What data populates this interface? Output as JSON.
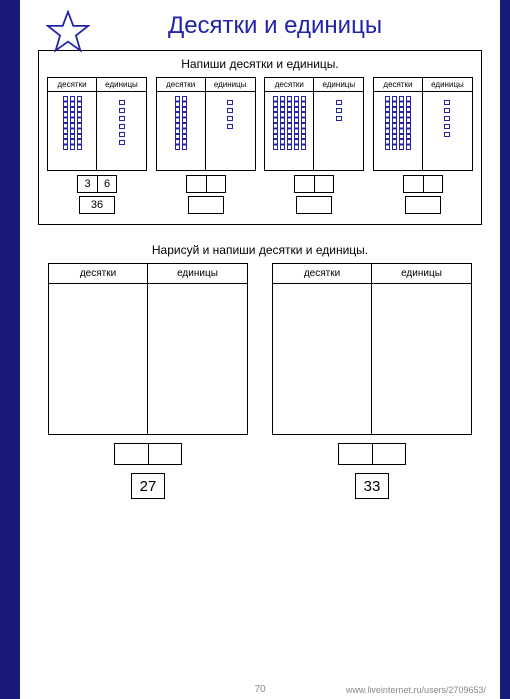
{
  "title": "Десятки и единицы",
  "section1": {
    "instruction": "Напиши десятки и единицы.",
    "col_tens": "десятки",
    "col_units": "единицы",
    "items": [
      {
        "tens_bars": 3,
        "unit_squares": 6,
        "tens_ans": "3",
        "units_ans": "6",
        "total_ans": "36"
      },
      {
        "tens_bars": 2,
        "unit_squares": 4,
        "tens_ans": "",
        "units_ans": "",
        "total_ans": ""
      },
      {
        "tens_bars": 5,
        "unit_squares": 3,
        "tens_ans": "",
        "units_ans": "",
        "total_ans": ""
      },
      {
        "tens_bars": 4,
        "unit_squares": 5,
        "tens_ans": "",
        "units_ans": "",
        "total_ans": ""
      }
    ]
  },
  "section2": {
    "instruction": "Нарисуй и напиши десятки и единицы.",
    "col_tens": "десятки",
    "col_units": "единицы",
    "items": [
      {
        "total": "27"
      },
      {
        "total": "33"
      }
    ]
  },
  "page_number": "70",
  "footer": "www.liveinternet.ru/users/2709653/",
  "colors": {
    "page_border": "#1a1a7a",
    "title_color": "#2222aa",
    "line_color": "#000000",
    "bar_color": "#2222aa"
  }
}
